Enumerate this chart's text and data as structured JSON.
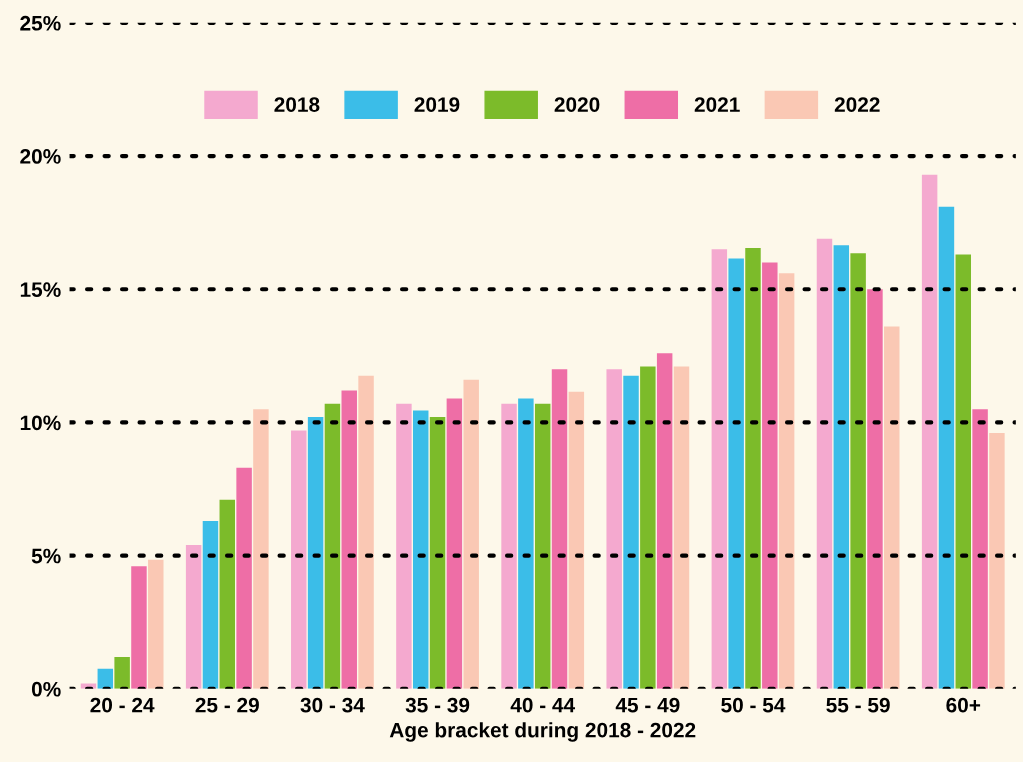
{
  "chart_data": {
    "type": "bar",
    "xlabel": "Age bracket during 2018 - 2022",
    "categories": [
      "20 - 24",
      "25 - 29",
      "30 - 34",
      "35 - 39",
      "40 - 44",
      "45 - 49",
      "50 - 54",
      "55 - 59",
      "60+"
    ],
    "series": [
      {
        "name": "2018",
        "color": "#f4a9cf",
        "values": [
          0.2,
          5.4,
          9.7,
          10.7,
          10.7,
          12.0,
          16.5,
          16.9,
          19.3
        ]
      },
      {
        "name": "2019",
        "color": "#3bbde8",
        "values": [
          0.75,
          6.3,
          10.2,
          10.45,
          10.9,
          11.75,
          16.15,
          16.65,
          18.1
        ]
      },
      {
        "name": "2020",
        "color": "#7cbb2a",
        "values": [
          1.2,
          7.1,
          10.7,
          10.2,
          10.7,
          12.1,
          16.55,
          16.35,
          16.3
        ]
      },
      {
        "name": "2021",
        "color": "#ee6ea6",
        "values": [
          4.6,
          8.3,
          11.2,
          10.9,
          12.0,
          12.6,
          16.0,
          15.0,
          10.5
        ]
      },
      {
        "name": "2022",
        "color": "#fac8b4",
        "values": [
          4.85,
          10.5,
          11.75,
          11.6,
          11.15,
          12.1,
          15.6,
          13.6,
          9.6
        ]
      }
    ],
    "ylim": [
      0,
      25
    ],
    "yticks": [
      {
        "value": 0,
        "label": "0%"
      },
      {
        "value": 5,
        "label": "5%"
      },
      {
        "value": 10,
        "label": "10%"
      },
      {
        "value": 15,
        "label": "15%"
      },
      {
        "value": 20,
        "label": "20%"
      },
      {
        "value": 25,
        "label": "25%"
      }
    ],
    "grid": "y",
    "legend": "top"
  }
}
